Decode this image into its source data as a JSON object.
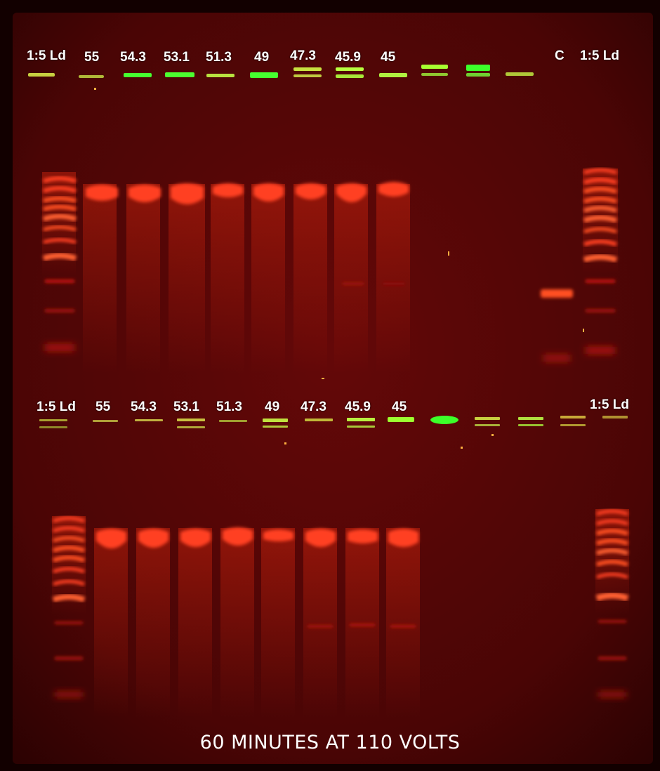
{
  "image": {
    "title": "Agarose gel electrophoresis (gradient PCR, two gel rows)",
    "palette": {
      "background": "#1a0000",
      "gel": "#5a0606",
      "band": "#ff3a14",
      "well_green": "#3cff2a",
      "label": "#ffffff"
    }
  },
  "top_row": {
    "labels": [
      "1:5 Ld",
      "55",
      "54.3",
      "53.1",
      "51.3",
      "49",
      "47.3",
      "45.9",
      "45",
      "C",
      "1:5 Ld"
    ]
  },
  "bottom_row": {
    "labels": [
      "1:5 Ld",
      "55",
      "54.3",
      "53.1",
      "51.3",
      "49",
      "47.3",
      "45.9",
      "45",
      "1:5 Ld"
    ]
  },
  "caption": "60 MINUTES AT 110 VOLTS"
}
